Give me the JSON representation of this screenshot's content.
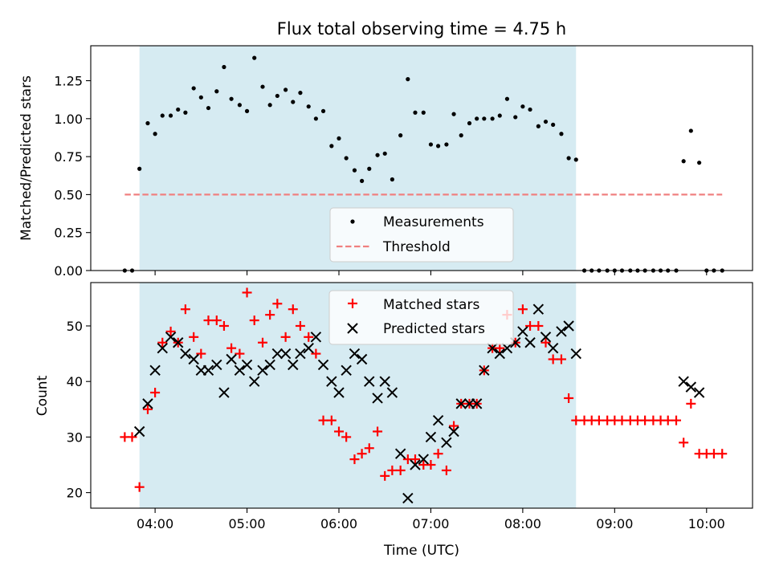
{
  "figure": {
    "title": "Flux total observing time = 4.75 h",
    "xlabel": "Time (UTC)",
    "xticks": [
      "04:00",
      "05:00",
      "06:00",
      "07:00",
      "08:00",
      "09:00",
      "10:00"
    ],
    "xtick_hours": [
      4,
      5,
      6,
      7,
      8,
      9,
      10
    ],
    "xlim_hours": [
      3.3,
      10.5
    ],
    "shade_hours": [
      3.83,
      8.58
    ],
    "shade_color": "#add8e6"
  },
  "chart_data": [
    {
      "type": "scatter",
      "ylabel": "Matched/Predicted stars",
      "ylim": [
        0,
        1.48
      ],
      "yticks": [
        "0.00",
        "0.25",
        "0.50",
        "0.75",
        "1.00",
        "1.25"
      ],
      "ytick_values": [
        0,
        0.25,
        0.5,
        0.75,
        1.0,
        1.25
      ],
      "legend_position": "lower-center",
      "threshold": {
        "name": "Threshold",
        "value": 0.5,
        "x_range": [
          3.67,
          10.17
        ],
        "color": "#f08080"
      },
      "series": [
        {
          "name": "Measurements",
          "color": "#000000",
          "x": [
            3.67,
            3.75,
            3.83,
            3.92,
            4.0,
            4.08,
            4.17,
            4.25,
            4.33,
            4.42,
            4.5,
            4.58,
            4.67,
            4.75,
            4.83,
            4.92,
            5.0,
            5.08,
            5.17,
            5.25,
            5.33,
            5.42,
            5.5,
            5.58,
            5.67,
            5.75,
            5.83,
            5.92,
            6.0,
            6.08,
            6.17,
            6.25,
            6.33,
            6.42,
            6.5,
            6.58,
            6.67,
            6.75,
            6.83,
            6.92,
            7.0,
            7.08,
            7.17,
            7.25,
            7.33,
            7.42,
            7.5,
            7.58,
            7.67,
            7.75,
            7.83,
            7.92,
            8.0,
            8.08,
            8.17,
            8.25,
            8.33,
            8.42,
            8.5,
            8.58,
            8.67,
            8.75,
            8.83,
            8.92,
            9.0,
            9.08,
            9.17,
            9.25,
            9.33,
            9.42,
            9.5,
            9.58,
            9.67,
            9.75,
            9.83,
            9.92,
            10.0,
            10.08,
            10.17
          ],
          "y": [
            0.0,
            0.0,
            0.67,
            0.97,
            0.9,
            1.02,
            1.02,
            1.06,
            1.04,
            1.2,
            1.14,
            1.07,
            1.18,
            1.34,
            1.13,
            1.09,
            1.05,
            1.4,
            1.21,
            1.09,
            1.15,
            1.19,
            1.11,
            1.17,
            1.08,
            1.0,
            1.05,
            0.82,
            0.87,
            0.74,
            0.66,
            0.59,
            0.67,
            0.76,
            0.77,
            0.6,
            0.89,
            1.26,
            1.04,
            1.04,
            0.83,
            0.82,
            0.83,
            1.03,
            0.89,
            0.97,
            1.0,
            1.0,
            1.0,
            1.02,
            1.13,
            1.01,
            1.08,
            1.06,
            0.95,
            0.98,
            0.96,
            0.9,
            0.74,
            0.73,
            0.0,
            0.0,
            0.0,
            0.0,
            0.0,
            0.0,
            0.0,
            0.0,
            0.0,
            0.0,
            0.0,
            0.0,
            0.0,
            0.72,
            0.92,
            0.71,
            0.0,
            0.0,
            0.0
          ]
        }
      ]
    },
    {
      "type": "scatter",
      "ylabel": "Count",
      "ylim": [
        17.2,
        57.8
      ],
      "yticks": [
        "20",
        "30",
        "40",
        "50"
      ],
      "ytick_values": [
        20,
        30,
        40,
        50
      ],
      "legend_position": "upper-center",
      "series": [
        {
          "name": "Matched stars",
          "marker": "plus",
          "color": "#ff0000",
          "x": [
            3.67,
            3.75,
            3.83,
            3.92,
            4.0,
            4.08,
            4.17,
            4.25,
            4.33,
            4.42,
            4.5,
            4.58,
            4.67,
            4.75,
            4.83,
            4.92,
            5.0,
            5.08,
            5.17,
            5.25,
            5.33,
            5.42,
            5.5,
            5.58,
            5.67,
            5.75,
            5.83,
            5.92,
            6.0,
            6.08,
            6.17,
            6.25,
            6.33,
            6.42,
            6.5,
            6.58,
            6.67,
            6.75,
            6.83,
            6.92,
            7.0,
            7.08,
            7.17,
            7.25,
            7.33,
            7.42,
            7.5,
            7.58,
            7.67,
            7.75,
            7.83,
            7.92,
            8.0,
            8.08,
            8.17,
            8.25,
            8.33,
            8.42,
            8.5,
            8.58,
            8.67,
            8.75,
            8.83,
            8.92,
            9.0,
            9.08,
            9.17,
            9.25,
            9.33,
            9.42,
            9.5,
            9.58,
            9.67,
            9.75,
            9.83,
            9.92,
            10.0,
            10.08,
            10.17
          ],
          "y": [
            30,
            30,
            21,
            35,
            38,
            47,
            49,
            47,
            53,
            48,
            45,
            51,
            51,
            50,
            46,
            45,
            56,
            51,
            47,
            52,
            54,
            48,
            53,
            50,
            48,
            45,
            33,
            33,
            31,
            30,
            26,
            27,
            28,
            31,
            23,
            24,
            24,
            26,
            26,
            25,
            25,
            27,
            24,
            32,
            36,
            36,
            36,
            42,
            46,
            46,
            52,
            47,
            53,
            50,
            50,
            47,
            44,
            44,
            37,
            33,
            33,
            33,
            33,
            33,
            33,
            33,
            33,
            33,
            33,
            33,
            33,
            33,
            33,
            29,
            36,
            27,
            27,
            27,
            27
          ]
        },
        {
          "name": "Predicted stars",
          "marker": "x",
          "color": "#000000",
          "x": [
            3.83,
            3.92,
            4.0,
            4.08,
            4.17,
            4.25,
            4.33,
            4.42,
            4.5,
            4.58,
            4.67,
            4.75,
            4.83,
            4.92,
            5.0,
            5.08,
            5.17,
            5.25,
            5.33,
            5.42,
            5.5,
            5.58,
            5.67,
            5.75,
            5.83,
            5.92,
            6.0,
            6.08,
            6.17,
            6.25,
            6.33,
            6.42,
            6.5,
            6.58,
            6.67,
            6.75,
            6.83,
            6.92,
            7.0,
            7.08,
            7.17,
            7.25,
            7.33,
            7.42,
            7.5,
            7.58,
            7.67,
            7.75,
            7.83,
            7.92,
            8.0,
            8.08,
            8.17,
            8.25,
            8.33,
            8.42,
            8.5,
            8.58,
            9.75,
            9.83,
            9.92
          ],
          "y": [
            31,
            36,
            42,
            46,
            48,
            47,
            45,
            44,
            42,
            42,
            43,
            38,
            44,
            42,
            43,
            40,
            42,
            43,
            45,
            45,
            43,
            45,
            46,
            48,
            43,
            40,
            38,
            42,
            45,
            44,
            40,
            37,
            40,
            38,
            27,
            19,
            25,
            26,
            30,
            33,
            29,
            31,
            36,
            36,
            36,
            42,
            46,
            45,
            46,
            47,
            49,
            47,
            53,
            48,
            46,
            49,
            50,
            45,
            40,
            39,
            38
          ]
        }
      ]
    }
  ]
}
